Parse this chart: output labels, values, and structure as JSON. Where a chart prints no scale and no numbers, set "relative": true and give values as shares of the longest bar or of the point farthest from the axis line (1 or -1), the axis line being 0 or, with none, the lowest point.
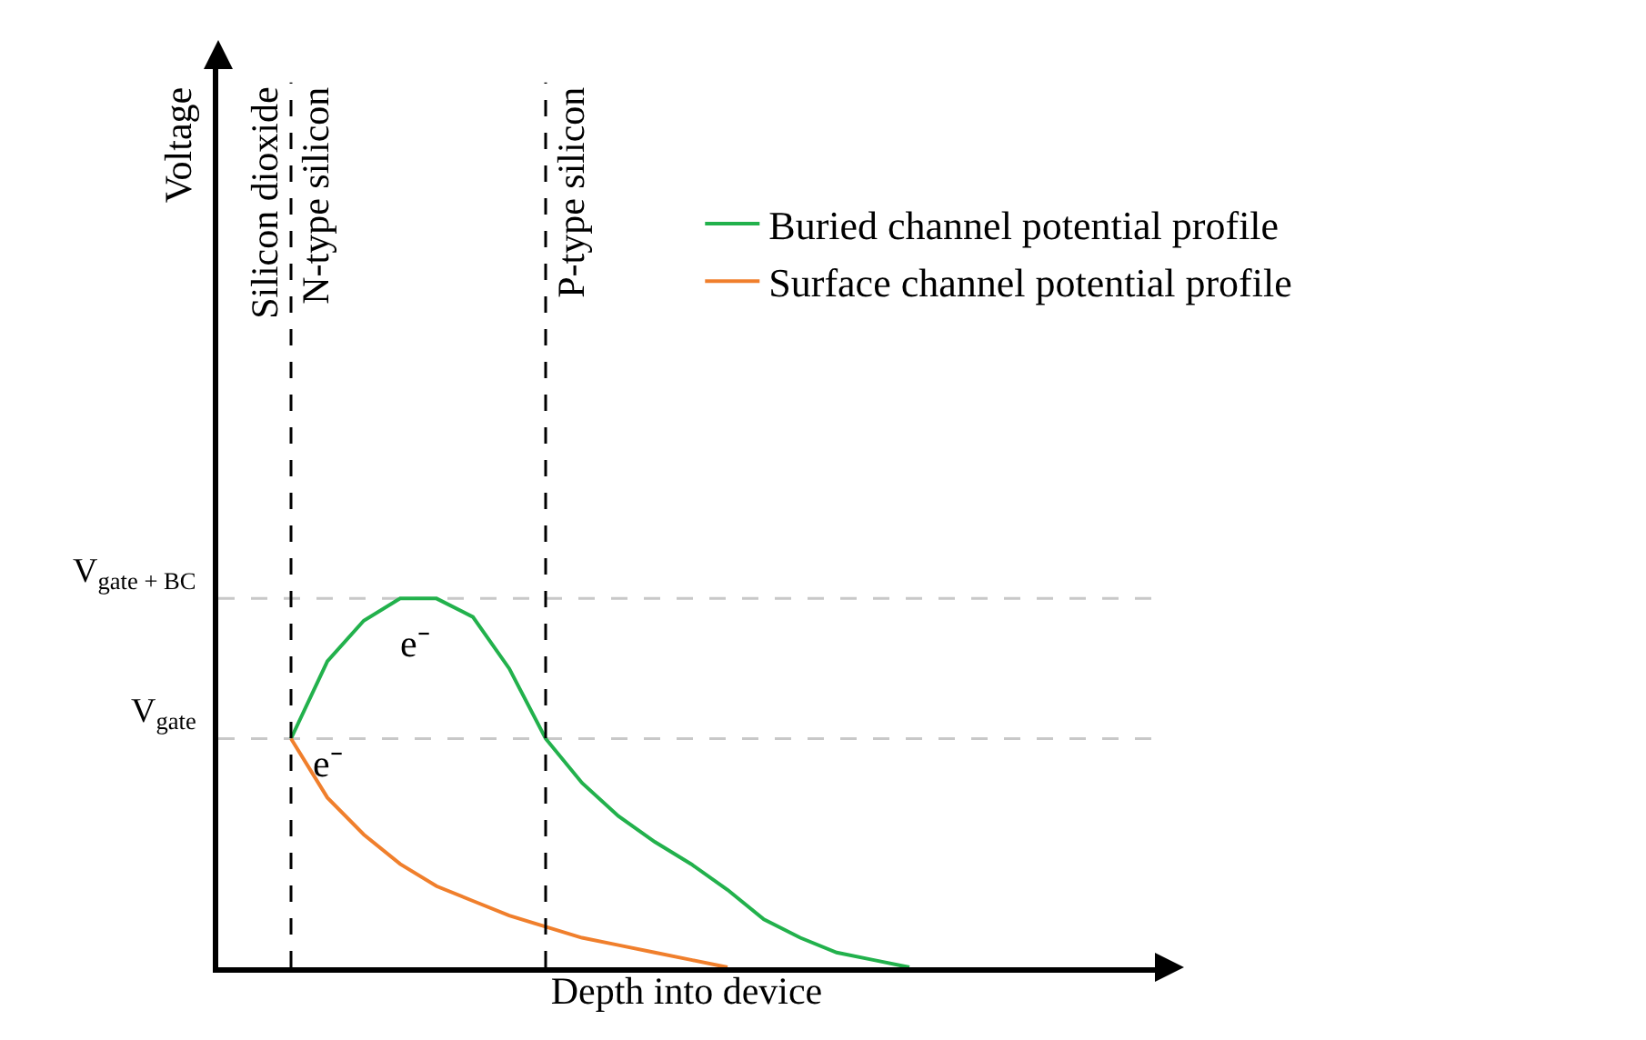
{
  "chart_data": {
    "type": "line",
    "relative": true,
    "xlabel": "Depth into device",
    "categories": [
      null,
      null,
      null,
      null,
      null,
      null,
      null,
      null,
      null,
      null,
      null,
      null,
      null,
      null,
      null,
      null,
      null,
      null,
      null,
      null,
      null,
      null,
      null,
      null,
      null,
      null
    ],
    "series": [
      {
        "name": "Buried channel potential profile",
        "color": "#22b14c",
        "values": [
          null,
          null,
          0.62,
          0.83,
          0.94,
          1.0,
          1.0,
          0.95,
          0.81,
          0.62,
          0.5,
          0.41,
          0.34,
          0.28,
          0.21,
          0.13,
          0.08,
          0.04,
          0.02,
          0,
          null,
          null,
          null,
          null,
          null,
          null
        ]
      },
      {
        "name": "Surface channel potential profile",
        "color": "#f07f2c",
        "values": [
          null,
          null,
          0.62,
          0.46,
          0.36,
          0.28,
          0.22,
          0.18,
          0.14,
          0.11,
          0.08,
          0.06,
          0.04,
          0.02,
          0,
          null,
          null,
          null,
          null,
          null,
          null,
          null,
          null,
          null,
          null,
          null
        ]
      }
    ],
    "ref_lines": [
      {
        "axis": "y",
        "value": 1.0,
        "label": "V$_{gate + BC}$",
        "color": "#c8c8c8",
        "line_style": "dashed"
      },
      {
        "axis": "y",
        "value": 0.62,
        "label": "V$_{gate}$",
        "color": "#c8c8c8",
        "line_style": "dashed"
      }
    ],
    "annotations": [
      "Silicon dioxide",
      "N-type silicon",
      "P-type silicon",
      "e⁻",
      "e⁻",
      "Voltage"
    ],
    "legend": "top right",
    "marker": "none",
    "line_style": "solid"
  }
}
